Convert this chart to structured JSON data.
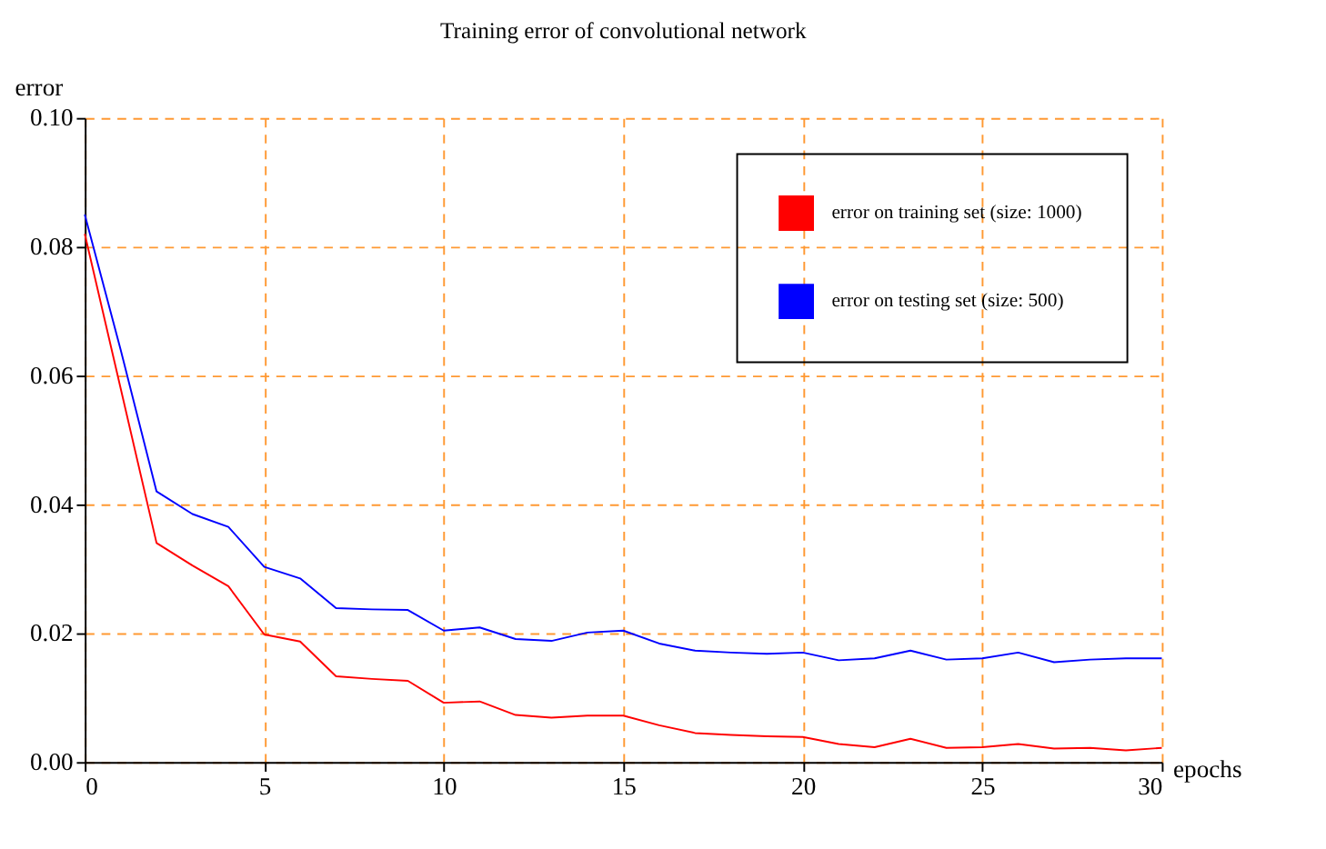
{
  "chart_data": {
    "type": "line",
    "title": "Training error of convolutional network",
    "xlabel": "epochs",
    "ylabel": "error",
    "x": [
      0,
      1,
      2,
      3,
      4,
      5,
      6,
      7,
      8,
      9,
      10,
      11,
      12,
      13,
      14,
      15,
      16,
      17,
      18,
      19,
      20,
      21,
      22,
      23,
      24,
      25,
      26,
      27,
      28,
      29,
      30
    ],
    "series": [
      {
        "name": "error on training set (size: 1000)",
        "color": "#ff0000",
        "values": [
          0.082,
          0.058,
          0.034,
          0.0305,
          0.0273,
          0.0198,
          0.0187,
          0.0133,
          0.0129,
          0.0126,
          0.0092,
          0.0094,
          0.0073,
          0.0069,
          0.0072,
          0.0072,
          0.0057,
          0.0045,
          0.0042,
          0.004,
          0.0039,
          0.0028,
          0.0023,
          0.0036,
          0.0022,
          0.0023,
          0.0028,
          0.0021,
          0.0022,
          0.0018,
          0.0022
        ]
      },
      {
        "name": "error on testing set (size: 500)",
        "color": "#0000ff",
        "values": [
          0.085,
          0.064,
          0.042,
          0.0385,
          0.0365,
          0.0303,
          0.0285,
          0.0239,
          0.0237,
          0.0236,
          0.0204,
          0.0209,
          0.0191,
          0.0188,
          0.0201,
          0.0204,
          0.0184,
          0.0173,
          0.017,
          0.0168,
          0.017,
          0.0158,
          0.0161,
          0.0173,
          0.0159,
          0.0161,
          0.017,
          0.0155,
          0.0159,
          0.0161,
          0.0161
        ]
      }
    ],
    "xlim": [
      0,
      30
    ],
    "xticks": [
      0,
      5,
      10,
      15,
      20,
      25,
      30
    ],
    "ylim": [
      0,
      0.1
    ],
    "yticks": [
      {
        "value": 0,
        "label": "0.00"
      },
      0.02,
      0.04,
      0.06,
      0.08,
      {
        "value": 0.1,
        "label": "0.10"
      }
    ],
    "grid": true,
    "legend": "top right",
    "marker": "none",
    "line_style": "solid"
  }
}
